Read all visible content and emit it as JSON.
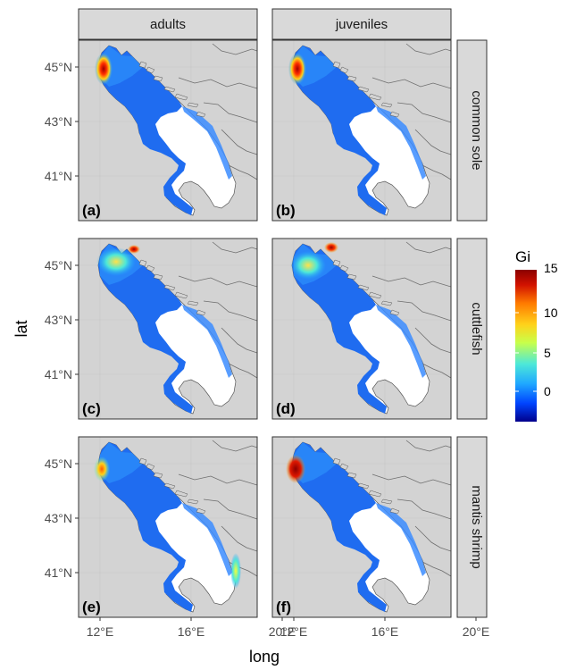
{
  "axes": {
    "xlabel": "long",
    "ylabel": "lat",
    "x_ticks": [
      "12°E",
      "16°E",
      "20°E"
    ],
    "y_ticks": [
      "45°N",
      "43°N",
      "41°N"
    ]
  },
  "columns": [
    "adults",
    "juveniles"
  ],
  "rows": [
    "common sole",
    "cuttlefish",
    "mantis shrimp"
  ],
  "panels": [
    {
      "label": "(a)",
      "column": "adults",
      "row": "common sole",
      "hotspot": "north-west coast"
    },
    {
      "label": "(b)",
      "column": "juveniles",
      "row": "common sole",
      "hotspot": "north-west coast"
    },
    {
      "label": "(c)",
      "column": "adults",
      "row": "cuttlefish",
      "hotspot": "northern gulf"
    },
    {
      "label": "(d)",
      "column": "juveniles",
      "row": "cuttlefish",
      "hotspot": "northern gulf"
    },
    {
      "label": "(e)",
      "column": "adults",
      "row": "mantis shrimp",
      "hotspot": "north-west coast and south-east coast"
    },
    {
      "label": "(f)",
      "column": "juveniles",
      "row": "mantis shrimp",
      "hotspot": "north-west coast"
    }
  ],
  "legend": {
    "title": "Gi",
    "ticks": [
      "15",
      "10",
      "5",
      "0"
    ],
    "colors": [
      "#00008b",
      "#0044ff",
      "#1fa8ff",
      "#4de8d8",
      "#c8ff4a",
      "#ffd21a",
      "#ff7a00",
      "#d21200",
      "#8b0000"
    ]
  },
  "colors": {
    "land": "#d3d3d3",
    "sea_no_data": "#ffffff",
    "strip_bg": "#d9d9d9",
    "grid": "#ebebeb"
  }
}
